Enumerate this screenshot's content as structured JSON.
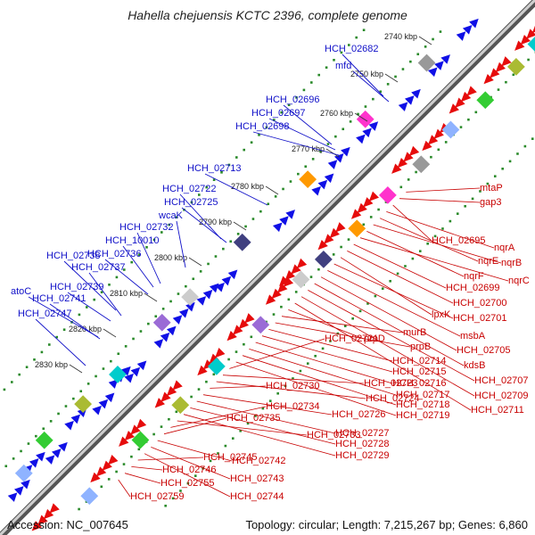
{
  "title": "Hahella chejuensis KCTC 2396, complete genome",
  "footer": {
    "accession": "Accession: NC_007645",
    "summary": "Topology: circular; Length: 7,215,267 bp; Genes: 6,860"
  },
  "kbp_ticks": [
    "2740 kbp",
    "2750 kbp",
    "2760 kbp",
    "2770 kbp",
    "2780 kbp",
    "2790 kbp",
    "2800 kbp",
    "2810 kbp",
    "2820 kbp",
    "2830 kbp"
  ],
  "blue_labels": [
    "HCH_02682",
    "mfd",
    "HCH_02696",
    "HCH_02697",
    "HCH_02698",
    "HCH_02713",
    "HCH_02722",
    "HCH_02725",
    "wcaK",
    "HCH_02732",
    "HCH_10010",
    "HCH_02736",
    "HCH_02738",
    "HCH_02737",
    "HCH_02739",
    "atoC",
    "HCH_02741",
    "HCH_02747"
  ],
  "red_labels": [
    "mtaP",
    "gap3",
    "HCH_02695",
    "nqrA",
    "nqrE",
    "nqrB",
    "nqrF",
    "nqrC",
    "HCH_02699",
    "HCH_02700",
    "lpxK",
    "HCH_02701",
    "msbA",
    "HCH_02705",
    "kdsB",
    "HCH_02707",
    "HCH_02709",
    "HCH_02711",
    "prpD",
    "murB",
    "prpB",
    "HCH_02714",
    "HCH_02715",
    "HCH_02716",
    "HCH_02717",
    "HCH_02718",
    "HCH_02719",
    "HCH_02721",
    "HCH_02723",
    "HCH_02724",
    "HCH_02730",
    "HCH_02726",
    "HCH_02727",
    "HCH_02728",
    "HCH_02729",
    "HCH_02733",
    "HCH_02734",
    "HCH_02735",
    "HCH_02742",
    "HCH_02743",
    "HCH_02744",
    "HCH_02745",
    "HCH_02746",
    "HCH_02755",
    "HCH_02759"
  ],
  "colors": {
    "forward_gene": "#1010e6",
    "reverse_gene": "#e60c0c",
    "backbone": "#8c8c8c",
    "tick_dots": "#2a8a2a",
    "blue_label": "#1010c8",
    "red_label": "#c80000"
  }
}
